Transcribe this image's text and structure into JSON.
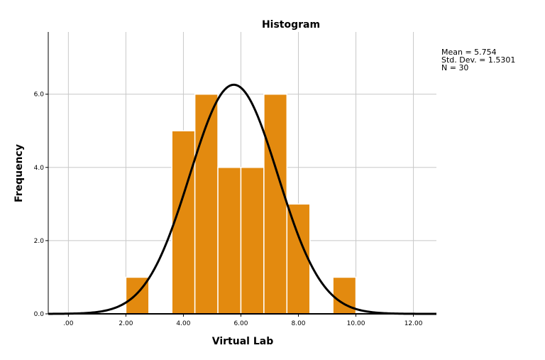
{
  "chart_data": {
    "type": "bar",
    "title": "Histogram",
    "xlabel": "Virtual Lab",
    "ylabel": "Frequency",
    "xlim": [
      -0.7,
      12.8
    ],
    "ylim": [
      0,
      7.7
    ],
    "x_ticks": [
      0,
      2,
      4,
      6,
      8,
      10,
      12
    ],
    "x_tick_labels": [
      ".00",
      "2.00",
      "4.00",
      "6.00",
      "8.00",
      "10.00",
      "12.00"
    ],
    "y_ticks": [
      0,
      2,
      4,
      6
    ],
    "y_tick_labels": [
      "0.0",
      "2.0",
      "4.0",
      "6.0"
    ],
    "bins": [
      {
        "from": 2.0,
        "to": 2.8,
        "count": 1
      },
      {
        "from": 3.6,
        "to": 4.4,
        "count": 5
      },
      {
        "from": 4.4,
        "to": 5.2,
        "count": 6
      },
      {
        "from": 5.2,
        "to": 6.0,
        "count": 4
      },
      {
        "from": 6.0,
        "to": 6.8,
        "count": 4
      },
      {
        "from": 6.8,
        "to": 7.6,
        "count": 6
      },
      {
        "from": 7.6,
        "to": 8.4,
        "count": 3
      },
      {
        "from": 9.2,
        "to": 10.0,
        "count": 1
      }
    ],
    "normal_curve": {
      "mean": 5.754,
      "sd": 1.5301,
      "n": 30,
      "bin_width": 0.8
    },
    "stats_lines": [
      "Mean = 5.754",
      "Std. Dev. = 1.5301",
      "N = 30"
    ],
    "grid": true,
    "colors": {
      "bar": "#E38A0F",
      "bar_edge": "#ffffff",
      "curve": "#000000",
      "grid": "#c8c8c8",
      "axis": "#000000"
    }
  }
}
